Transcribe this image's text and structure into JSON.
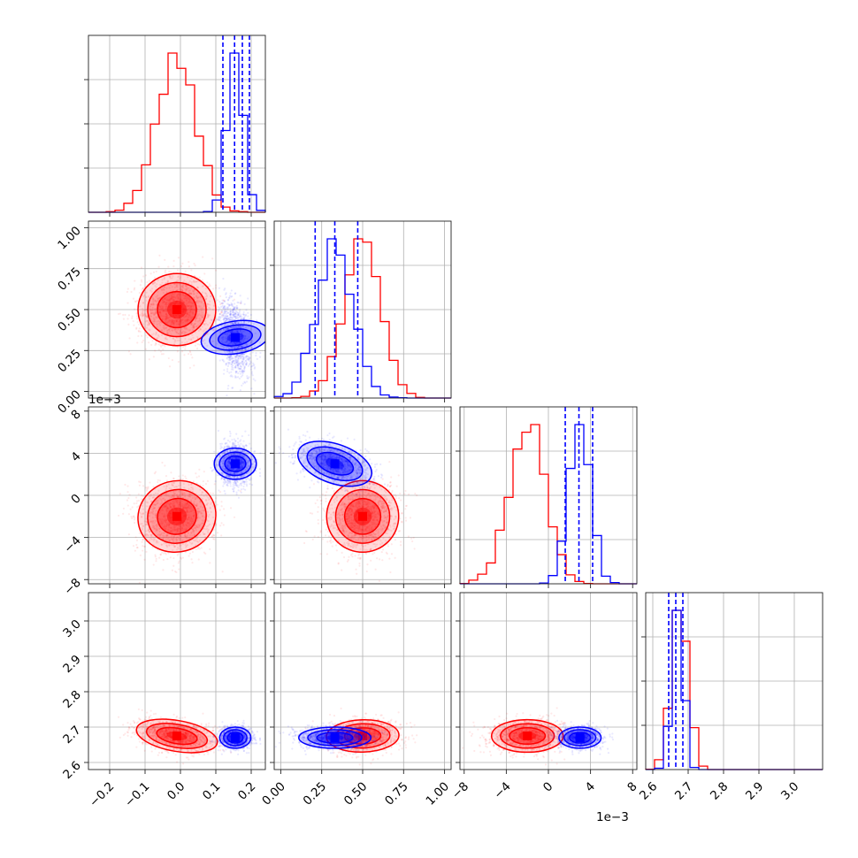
{
  "figure": {
    "type": "corner plot",
    "offset_labels": {
      "axis3_y": "1e−3",
      "axis3_x": "1e−3"
    }
  },
  "colors": {
    "red": "#ff0000",
    "blue": "#0000ff",
    "grid": "#b0b0b0"
  },
  "chart_data": {
    "type": "corner",
    "parameters": [
      {
        "range": [
          -0.26,
          0.24
        ],
        "ticks": [
          -0.2,
          -0.1,
          0.0,
          0.1,
          0.2
        ],
        "tick_labels": [
          "−0.2",
          "−0.1",
          "0.0",
          "0.1",
          "0.2"
        ]
      },
      {
        "range": [
          -0.04,
          1.04
        ],
        "ticks": [
          0.0,
          0.25,
          0.5,
          0.75,
          1.0
        ],
        "tick_labels": [
          "0.00",
          "0.25",
          "0.50",
          "0.75",
          "1.00"
        ]
      },
      {
        "range": [
          -8.4,
          8.4
        ],
        "ticks": [
          -8,
          -4,
          0,
          4,
          8
        ],
        "tick_labels": [
          "−8",
          "−4",
          "0",
          "4",
          "8"
        ],
        "scale_label": "1e−3"
      },
      {
        "range": [
          2.58,
          3.08
        ],
        "ticks": [
          2.6,
          2.7,
          2.8,
          2.9,
          3.0
        ],
        "tick_labels": [
          "2.6",
          "2.7",
          "2.8",
          "2.9",
          "3.0"
        ]
      }
    ],
    "series": [
      {
        "color": "#ff0000",
        "means": [
          -0.01,
          0.5,
          -2.0,
          2.675
        ],
        "sds": [
          0.055,
          0.11,
          1.7,
          0.023
        ],
        "corr": [
          [
            0,
            2,
            0.05
          ],
          [
            0,
            3,
            -0.35
          ],
          [
            1,
            3,
            0.05
          ],
          [
            2,
            3,
            0.0
          ]
        ]
      },
      {
        "color": "#0000ff",
        "means": [
          0.155,
          0.33,
          3.0,
          2.67
        ],
        "sds": [
          0.022,
          0.11,
          1.0,
          0.015
        ],
        "corr": [
          [
            0,
            1,
            -0.3
          ],
          [
            1,
            2,
            -0.45
          ]
        ]
      }
    ],
    "quantile_lines": [
      {
        "param": 0,
        "values": [
          0.12,
          0.153,
          0.175,
          0.195
        ]
      },
      {
        "param": 1,
        "values": [
          0.21,
          0.33,
          0.47
        ]
      },
      {
        "param": 2,
        "values": [
          1.6,
          2.9,
          4.2
        ]
      },
      {
        "param": 3,
        "values": [
          2.645,
          2.665,
          2.685
        ]
      }
    ],
    "grid": true
  }
}
